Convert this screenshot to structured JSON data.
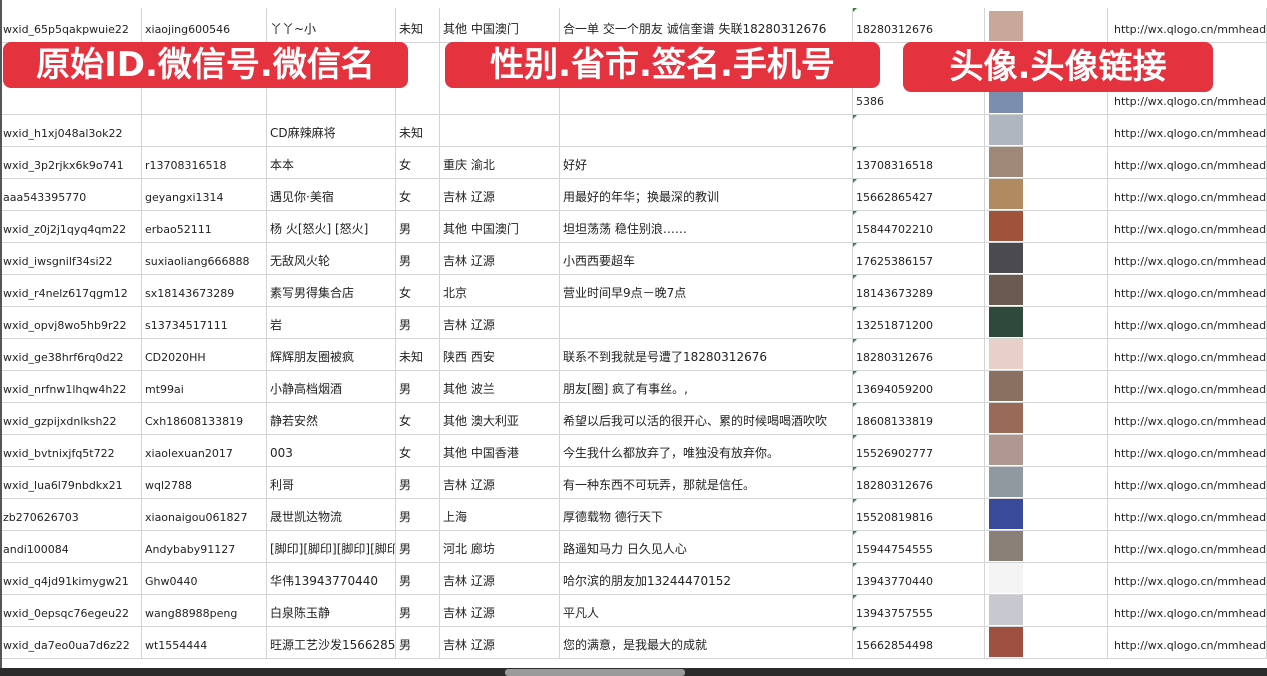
{
  "overlay_labels": [
    "原始ID.微信号.微信名",
    "性别.省市.签名.手机号",
    "头像.头像链接"
  ],
  "colors": {
    "label_bg": "#e5323f",
    "grid": "#d4d4d4",
    "cell_marker": "#2a8a3a"
  },
  "rows": [
    {
      "id": "wxid_65p5qakpwuie22",
      "wx": "xiaojing600546",
      "name": "丫丫~小",
      "sex": "未知",
      "region": "其他 中国澳门",
      "sign": "合一单 交一个朋友 诚信奎谱 失联18280312676",
      "phone": "18280312676",
      "avatar": "#c9a89a",
      "link": "http://wx.qlogo.cn/mmhead"
    },
    {
      "id": "",
      "wx": "",
      "name": "",
      "sex": "",
      "region": "",
      "sign": "",
      "phone": "5386",
      "avatar": "#7a8fb0",
      "link": "http://wx.qlogo.cn/mmhead"
    },
    {
      "id": "wxid_h1xj048al3ok22",
      "wx": "",
      "name": "CD麻辣麻将",
      "sex": "未知",
      "region": "",
      "sign": "",
      "phone": "",
      "avatar": "#b0b6c0",
      "link": "http://wx.qlogo.cn/mmhead"
    },
    {
      "id": "wxid_3p2rjkx6k9o741",
      "wx": "r13708316518",
      "name": "本本",
      "sex": "女",
      "region": "重庆 渝北",
      "sign": "好好",
      "phone": "13708316518",
      "avatar": "#a08878",
      "link": "http://wx.qlogo.cn/mmhead"
    },
    {
      "id": "aaa543395770",
      "wx": "geyangxi1314",
      "name": "遇见你·美宿",
      "sex": "女",
      "region": "吉林 辽源",
      "sign": "用最好的年华；换最深的教训",
      "phone": "15662865427",
      "avatar": "#b08a60",
      "link": "http://wx.qlogo.cn/mmhead"
    },
    {
      "id": "wxid_z0j2j1qyq4qm22",
      "wx": "erbao52111",
      "name": "杨 火[怒火] [怒火]",
      "sex": "男",
      "region": "其他 中国澳门",
      "sign": "坦坦荡荡 稳住别浪……",
      "phone": "15844702210",
      "avatar": "#a0523a",
      "link": "http://wx.qlogo.cn/mmhead"
    },
    {
      "id": "wxid_iwsgnilf34si22",
      "wx": "suxiaoliang666888",
      "name": "无敌风火轮",
      "sex": "男",
      "region": "吉林 辽源",
      "sign": "小西西要超车",
      "phone": "17625386157",
      "avatar": "#4a4a50",
      "link": "http://wx.qlogo.cn/mmhead"
    },
    {
      "id": "wxid_r4nelz617qgm12",
      "wx": "sx18143673289",
      "name": "素写男得集合店",
      "sex": "女",
      "region": "北京",
      "sign": "营业时间早9点－晚7点",
      "phone": "18143673289",
      "avatar": "#6a5a50",
      "link": "http://wx.qlogo.cn/mmhead"
    },
    {
      "id": "wxid_opvj8wo5hb9r22",
      "wx": "s13734517111",
      "name": "岩",
      "sex": "男",
      "region": "吉林 辽源",
      "sign": "",
      "phone": "13251871200",
      "avatar": "#2f4a3a",
      "link": "http://wx.qlogo.cn/mmhead"
    },
    {
      "id": "wxid_ge38hrf6rq0d22",
      "wx": "CD2020HH",
      "name": "辉辉朋友圈被疯",
      "sex": "未知",
      "region": "陕西 西安",
      "sign": "联系不到我就是号遭了18280312676",
      "phone": "18280312676",
      "avatar": "#e8d0c8",
      "link": "http://wx.qlogo.cn/mmhead"
    },
    {
      "id": "wxid_nrfnw1lhqw4h22",
      "wx": "mt99ai",
      "name": "小静高档烟酒",
      "sex": "男",
      "region": "其他 波兰",
      "sign": "朋友[圈] 疯了有事丝。,",
      "phone": "13694059200",
      "avatar": "#8a7060",
      "link": "http://wx.qlogo.cn/mmhead"
    },
    {
      "id": "wxid_gzpijxdnlksh22",
      "wx": "Cxh18608133819",
      "name": "静若安然",
      "sex": "女",
      "region": "其他 澳大利亚",
      "sign": "希望以后我可以活的很开心、累的时候喝喝酒吹吹",
      "phone": "18608133819",
      "avatar": "#9a6a58",
      "link": "http://wx.qlogo.cn/mmhead"
    },
    {
      "id": "wxid_bvtnixjfq5t722",
      "wx": "xiaolexuan2017",
      "name": "003",
      "sex": "女",
      "region": "其他 中国香港",
      "sign": "今生我什么都放弃了，唯独没有放弃你。",
      "phone": "15526902777",
      "avatar": "#b09890",
      "link": "http://wx.qlogo.cn/mmhead"
    },
    {
      "id": "wxid_lua6l79nbdkx21",
      "wx": "wql2788",
      "name": "利哥",
      "sex": "男",
      "region": "吉林 辽源",
      "sign": "有一种东西不可玩弄，那就是信任。",
      "phone": "18280312676",
      "avatar": "#9098a0",
      "link": "http://wx.qlogo.cn/mmhead"
    },
    {
      "id": "zb270626703",
      "wx": "xiaonaigou061827",
      "name": "晟世凯达物流",
      "sex": "男",
      "region": "上海",
      "sign": "厚德载物 德行天下",
      "phone": "15520819816",
      "avatar": "#3a4a9a",
      "link": "http://wx.qlogo.cn/mmhead"
    },
    {
      "id": "andi100084",
      "wx": "Andybaby91127",
      "name": "[脚印][脚印][脚印][脚印]",
      "sex": "男",
      "region": "河北 廊坊",
      "sign": "路遥知马力 日久见人心",
      "phone": "15944754555",
      "avatar": "#8a8078",
      "link": "http://wx.qlogo.cn/mmhead"
    },
    {
      "id": "wxid_q4jd91kimygw21",
      "wx": "Ghw0440",
      "name": "华伟13943770440",
      "sex": "男",
      "region": "吉林 辽源",
      "sign": "哈尔滨的朋友加13244470152",
      "phone": "13943770440",
      "avatar": "#f4f4f4",
      "link": "http://wx.qlogo.cn/mmhead"
    },
    {
      "id": "wxid_0epsqc76egeu22",
      "wx": "wang88988peng",
      "name": "白泉陈玉静",
      "sex": "男",
      "region": "吉林 辽源",
      "sign": "平凡人",
      "phone": "13943757555",
      "avatar": "#c8c8d0",
      "link": "http://wx.qlogo.cn/mmhead"
    },
    {
      "id": "wxid_da7eo0ua7d6z22",
      "wx": "wt1554444",
      "name": "旺源工艺沙发15662854",
      "sex": "男",
      "region": "吉林 辽源",
      "sign": "您的满意，是我最大的成就",
      "phone": "15662854498",
      "avatar": "#a05040",
      "link": "http://wx.qlogo.cn/mmhead"
    }
  ]
}
